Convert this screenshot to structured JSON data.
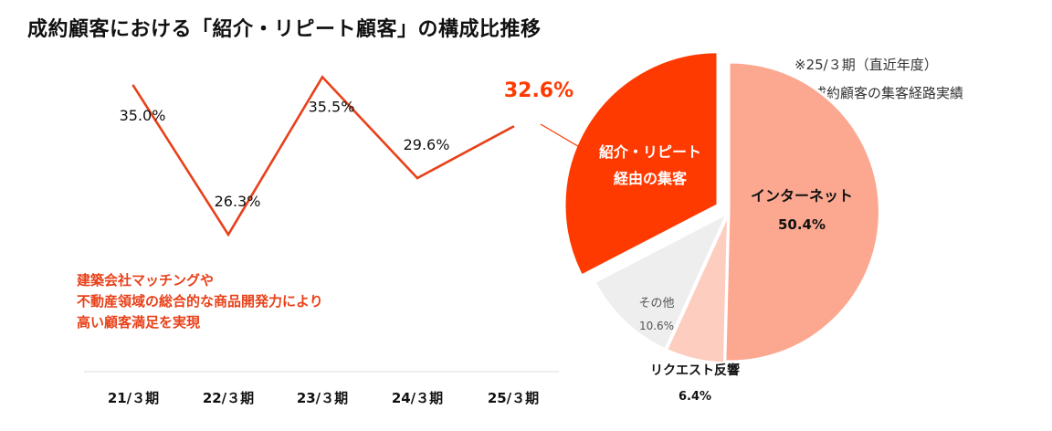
{
  "title": "成約顧客における「紹介・リピート顧客」の構成比推移",
  "tagline": [
    "建築会社マッチングや",
    "不動産領域の総合的な商品開発力により",
    "高い顧客満足を実現"
  ],
  "pie_note": {
    "line1": "※25/３期（直近年度）",
    "line2": "成約顧客の集客経路実績"
  },
  "colors": {
    "accent": "#ff3a00",
    "line": "#e8411a",
    "internet": "#fca891",
    "request": "#fdcdbf",
    "other": "#eeeeee"
  },
  "chart_data": [
    {
      "type": "line",
      "title": "成約顧客における「紹介・リピート顧客」の構成比推移",
      "categories": [
        "21/３期",
        "22/３期",
        "23/３期",
        "24/３期",
        "25/３期"
      ],
      "series": [
        {
          "name": "紹介・リピート顧客構成比",
          "values": [
            35.0,
            26.3,
            35.5,
            29.6,
            32.6
          ],
          "labels": [
            "35.0%",
            "26.3%",
            "35.5%",
            "29.6%",
            "32.6%"
          ]
        }
      ],
      "ylim": [
        20,
        40
      ],
      "grid": false,
      "xlabel": "",
      "ylabel": ""
    },
    {
      "type": "pie",
      "slices": [
        {
          "label_lines": [
            "インターネット"
          ],
          "value": 50.4,
          "value_label": "50.4%",
          "color": "#fca891"
        },
        {
          "label_lines": [
            "リクエスト反響"
          ],
          "value": 6.4,
          "value_label": "6.4%",
          "color": "#fdcdbf"
        },
        {
          "label_lines": [
            "その他"
          ],
          "value": 10.6,
          "value_label": "10.6%",
          "color": "#eeeeee"
        },
        {
          "label_lines": [
            "紹介・リピート",
            "経由の集客"
          ],
          "value": 32.6,
          "value_label": "",
          "color": "#ff3a00",
          "exploded": true
        }
      ]
    }
  ]
}
